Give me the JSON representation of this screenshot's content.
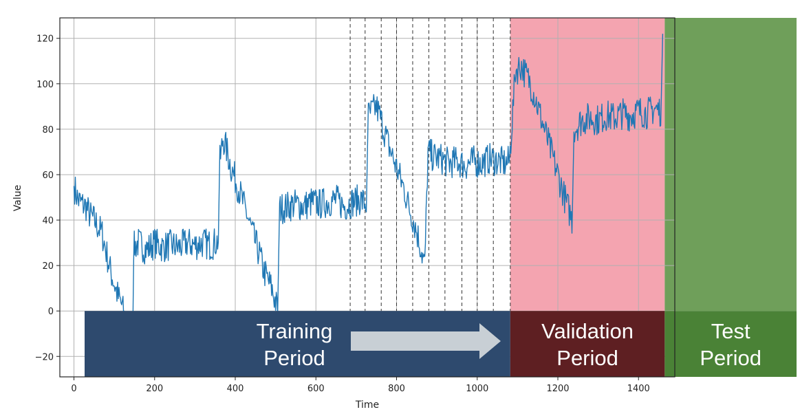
{
  "chart_data": {
    "type": "line",
    "xlabel": "Time",
    "ylabel": "Value",
    "xlim": [
      -35,
      1490
    ],
    "ylim": [
      -29,
      129
    ],
    "grid": true,
    "x_ticks": [
      0,
      200,
      400,
      600,
      800,
      1000,
      1200,
      1400
    ],
    "y_ticks": [
      -20,
      0,
      20,
      40,
      60,
      80,
      100,
      120
    ],
    "series": [
      {
        "color": "#1f77b4",
        "points": [
          [
            0,
            55
          ],
          [
            5,
            52
          ],
          [
            10,
            49
          ],
          [
            20,
            47
          ],
          [
            30,
            46
          ],
          [
            40,
            42
          ],
          [
            50,
            40
          ],
          [
            60,
            37
          ],
          [
            70,
            34
          ],
          [
            80,
            26
          ],
          [
            90,
            18
          ],
          [
            100,
            12
          ],
          [
            110,
            6
          ],
          [
            120,
            2
          ],
          [
            130,
            -8
          ],
          [
            140,
            -14
          ],
          [
            145,
            -18
          ],
          [
            148,
            28
          ],
          [
            160,
            30
          ],
          [
            180,
            27
          ],
          [
            200,
            30
          ],
          [
            220,
            28
          ],
          [
            240,
            29
          ],
          [
            260,
            28
          ],
          [
            280,
            30
          ],
          [
            300,
            29
          ],
          [
            320,
            30
          ],
          [
            340,
            29
          ],
          [
            358,
            31
          ],
          [
            362,
            66
          ],
          [
            370,
            76
          ],
          [
            380,
            70
          ],
          [
            390,
            63
          ],
          [
            400,
            58
          ],
          [
            410,
            53
          ],
          [
            420,
            47
          ],
          [
            430,
            42
          ],
          [
            440,
            36
          ],
          [
            450,
            30
          ],
          [
            460,
            25
          ],
          [
            470,
            18
          ],
          [
            480,
            14
          ],
          [
            490,
            10
          ],
          [
            500,
            4
          ],
          [
            505,
            0
          ],
          [
            510,
            45
          ],
          [
            530,
            46
          ],
          [
            550,
            47
          ],
          [
            570,
            46
          ],
          [
            590,
            48
          ],
          [
            610,
            47
          ],
          [
            630,
            48
          ],
          [
            650,
            49
          ],
          [
            670,
            46
          ],
          [
            690,
            48
          ],
          [
            710,
            49
          ],
          [
            725,
            47
          ],
          [
            730,
            86
          ],
          [
            740,
            88
          ],
          [
            750,
            90
          ],
          [
            760,
            85
          ],
          [
            770,
            79
          ],
          [
            780,
            73
          ],
          [
            790,
            68
          ],
          [
            800,
            63
          ],
          [
            810,
            58
          ],
          [
            820,
            53
          ],
          [
            830,
            46
          ],
          [
            840,
            41
          ],
          [
            850,
            35
          ],
          [
            860,
            28
          ],
          [
            870,
            20
          ],
          [
            878,
            70
          ],
          [
            890,
            68
          ],
          [
            910,
            67
          ],
          [
            930,
            65
          ],
          [
            950,
            66
          ],
          [
            970,
            64
          ],
          [
            990,
            66
          ],
          [
            1010,
            65
          ],
          [
            1030,
            67
          ],
          [
            1050,
            66
          ],
          [
            1070,
            65
          ],
          [
            1080,
            66
          ],
          [
            1095,
            106
          ],
          [
            1110,
            108
          ],
          [
            1120,
            104
          ],
          [
            1130,
            101
          ],
          [
            1140,
            96
          ],
          [
            1150,
            90
          ],
          [
            1160,
            84
          ],
          [
            1170,
            78
          ],
          [
            1180,
            72
          ],
          [
            1190,
            66
          ],
          [
            1200,
            60
          ],
          [
            1210,
            54
          ],
          [
            1220,
            48
          ],
          [
            1230,
            43
          ],
          [
            1235,
            40
          ],
          [
            1240,
            80
          ],
          [
            1260,
            84
          ],
          [
            1280,
            85
          ],
          [
            1300,
            84
          ],
          [
            1320,
            86
          ],
          [
            1340,
            85
          ],
          [
            1360,
            87
          ],
          [
            1380,
            86
          ],
          [
            1400,
            88
          ],
          [
            1420,
            87
          ],
          [
            1440,
            89
          ],
          [
            1455,
            88
          ],
          [
            1460,
            122
          ]
        ]
      }
    ],
    "split_lines_x": [
      685,
      722,
      762,
      800,
      840,
      880,
      920,
      962,
      1000,
      1040,
      1082
    ],
    "periods": [
      {
        "label_line1": "Training",
        "label_line2": "Period",
        "x_start": -5,
        "x_end": 1082,
        "band_color": "#2e4a6e",
        "fill_color": ""
      },
      {
        "label_line1": "Validation",
        "label_line2": "Period",
        "x_start": 1082,
        "x_end": 1465,
        "band_color": "#5e1f22",
        "fill_color": "#f4a4b0"
      },
      {
        "label_line1": "Test",
        "label_line2": "Period",
        "x_start": 1465,
        "x_end": 1850,
        "band_color": "#4a8236",
        "fill_color": "#6f9f5a"
      }
    ],
    "arrow_color": "#c8cfd5"
  }
}
